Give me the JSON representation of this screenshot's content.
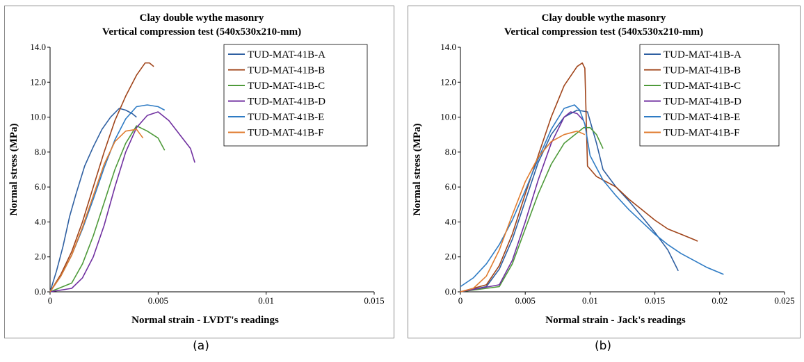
{
  "panels": [
    {
      "caption": "(a)"
    },
    {
      "caption": "(b)"
    }
  ],
  "chart_data": [
    {
      "type": "line",
      "title": "Clay double wythe masonry",
      "subtitle": "Vertical compression test (540x530x210-mm)",
      "xlabel": "Normal strain - LVDT's readings",
      "ylabel": "Normal stress (MPa)",
      "xlim": [
        0,
        0.015
      ],
      "ylim": [
        0,
        14
      ],
      "xticks": [
        0,
        0.005,
        0.01,
        0.015
      ],
      "xtick_labels": [
        "0",
        "0.005",
        "0.01",
        "0.015"
      ],
      "yticks": [
        0,
        2,
        4,
        6,
        8,
        10,
        12,
        14
      ],
      "ytick_labels": [
        "0.0",
        "2.0",
        "4.0",
        "6.0",
        "8.0",
        "10.0",
        "12.0",
        "14.0"
      ],
      "grid": false,
      "legend_position": "top-right",
      "series": [
        {
          "name": "TUD-MAT-41B-A",
          "color": "#2e5fa1",
          "x": [
            0,
            0.0003,
            0.0006,
            0.0009,
            0.0012,
            0.0016,
            0.002,
            0.0024,
            0.0028,
            0.0032,
            0.0035,
            0.0038,
            0.004
          ],
          "y": [
            0,
            1.2,
            2.6,
            4.3,
            5.6,
            7.2,
            8.3,
            9.3,
            10.0,
            10.5,
            10.4,
            10.2,
            10.0
          ]
        },
        {
          "name": "TUD-MAT-41B-B",
          "color": "#a0441a",
          "x": [
            0,
            0.0005,
            0.001,
            0.0015,
            0.002,
            0.0025,
            0.003,
            0.0035,
            0.004,
            0.0044,
            0.0046,
            0.0048
          ],
          "y": [
            0,
            1.0,
            2.3,
            4.0,
            6.0,
            8.0,
            9.8,
            11.2,
            12.4,
            13.1,
            13.1,
            12.9
          ]
        },
        {
          "name": "TUD-MAT-41B-C",
          "color": "#4e9a3a",
          "x": [
            0,
            0.001,
            0.0015,
            0.002,
            0.0025,
            0.003,
            0.0035,
            0.004,
            0.0045,
            0.005,
            0.0053
          ],
          "y": [
            0,
            0.5,
            1.6,
            3.2,
            5.1,
            7.0,
            8.5,
            9.5,
            9.2,
            8.8,
            8.1
          ]
        },
        {
          "name": "TUD-MAT-41B-D",
          "color": "#7030a0",
          "x": [
            0,
            0.001,
            0.0015,
            0.002,
            0.0025,
            0.003,
            0.0035,
            0.004,
            0.0045,
            0.005,
            0.0055,
            0.006,
            0.0065,
            0.0067
          ],
          "y": [
            0,
            0.2,
            0.8,
            2.0,
            3.8,
            6.0,
            8.0,
            9.4,
            10.1,
            10.3,
            9.8,
            9.0,
            8.2,
            7.4
          ]
        },
        {
          "name": "TUD-MAT-41B-E",
          "color": "#2e7bc4",
          "x": [
            0,
            0.0005,
            0.001,
            0.0015,
            0.002,
            0.0025,
            0.003,
            0.0035,
            0.004,
            0.0045,
            0.005,
            0.0053
          ],
          "y": [
            0,
            0.9,
            2.1,
            3.6,
            5.3,
            7.1,
            8.7,
            9.9,
            10.6,
            10.7,
            10.6,
            10.4
          ]
        },
        {
          "name": "TUD-MAT-41B-F",
          "color": "#e07b2e",
          "x": [
            0,
            0.0005,
            0.001,
            0.0015,
            0.002,
            0.0025,
            0.003,
            0.0035,
            0.004,
            0.0043
          ],
          "y": [
            0,
            0.9,
            2.1,
            3.7,
            5.5,
            7.3,
            8.6,
            9.2,
            9.3,
            8.8
          ]
        }
      ]
    },
    {
      "type": "line",
      "title": "Clay double wythe masonry",
      "subtitle": "Vertical compression test (540x530x210-mm)",
      "xlabel": "Normal strain - Jack's readings",
      "ylabel": "Normal stress (MPa)",
      "xlim": [
        0,
        0.025
      ],
      "ylim": [
        0,
        14
      ],
      "xticks": [
        0,
        0.005,
        0.01,
        0.015,
        0.02,
        0.025
      ],
      "xtick_labels": [
        "0",
        "0.005",
        "0.01",
        "0.015",
        "0.02",
        "0.025"
      ],
      "yticks": [
        0,
        2,
        4,
        6,
        8,
        10,
        12,
        14
      ],
      "ytick_labels": [
        "0.0",
        "2.0",
        "4.0",
        "6.0",
        "8.0",
        "10.0",
        "12.0",
        "14.0"
      ],
      "grid": false,
      "legend_position": "top-right",
      "series": [
        {
          "name": "TUD-MAT-41B-A",
          "color": "#2e5fa1",
          "x": [
            0,
            0.002,
            0.003,
            0.004,
            0.005,
            0.006,
            0.007,
            0.008,
            0.009,
            0.0098,
            0.0105,
            0.011,
            0.012,
            0.013,
            0.014,
            0.015,
            0.016,
            0.0168
          ],
          "y": [
            0,
            0.3,
            1.3,
            3.0,
            5.2,
            7.4,
            9.0,
            10.0,
            10.4,
            10.3,
            8.5,
            7.0,
            6.0,
            5.2,
            4.3,
            3.4,
            2.4,
            1.2
          ]
        },
        {
          "name": "TUD-MAT-41B-B",
          "color": "#a0441a",
          "x": [
            0,
            0.002,
            0.003,
            0.004,
            0.005,
            0.006,
            0.007,
            0.008,
            0.009,
            0.0094,
            0.0096,
            0.0098,
            0.0105,
            0.011,
            0.012,
            0.013,
            0.014,
            0.015,
            0.016,
            0.017,
            0.018,
            0.0183
          ],
          "y": [
            0,
            0.4,
            1.5,
            3.3,
            5.6,
            7.8,
            10.0,
            11.8,
            12.9,
            13.1,
            12.8,
            7.2,
            6.6,
            6.4,
            6.0,
            5.3,
            4.7,
            4.1,
            3.6,
            3.3,
            3.0,
            2.9
          ]
        },
        {
          "name": "TUD-MAT-41B-C",
          "color": "#4e9a3a",
          "x": [
            0,
            0.003,
            0.004,
            0.005,
            0.006,
            0.007,
            0.008,
            0.009,
            0.0095,
            0.01,
            0.0105,
            0.011
          ],
          "y": [
            0,
            0.3,
            1.6,
            3.6,
            5.6,
            7.3,
            8.5,
            9.1,
            9.4,
            9.4,
            9.0,
            8.2
          ]
        },
        {
          "name": "TUD-MAT-41B-D",
          "color": "#7030a0",
          "x": [
            0,
            0.003,
            0.004,
            0.005,
            0.006,
            0.007,
            0.008,
            0.0085,
            0.009,
            0.0095
          ],
          "y": [
            0,
            0.4,
            1.8,
            4.0,
            6.4,
            8.5,
            10.0,
            10.3,
            10.2,
            9.8
          ]
        },
        {
          "name": "TUD-MAT-41B-E",
          "color": "#2e7bc4",
          "x": [
            0,
            0.001,
            0.002,
            0.003,
            0.004,
            0.005,
            0.006,
            0.007,
            0.008,
            0.0088,
            0.0092,
            0.0096,
            0.01,
            0.011,
            0.012,
            0.013,
            0.014,
            0.015,
            0.016,
            0.017,
            0.018,
            0.019,
            0.0203
          ],
          "y": [
            0.3,
            0.8,
            1.6,
            2.7,
            4.1,
            5.8,
            7.6,
            9.3,
            10.5,
            10.7,
            10.4,
            9.6,
            7.8,
            6.4,
            5.5,
            4.7,
            4.0,
            3.3,
            2.7,
            2.2,
            1.8,
            1.4,
            1.0
          ]
        },
        {
          "name": "TUD-MAT-41B-F",
          "color": "#e07b2e",
          "x": [
            0,
            0.001,
            0.002,
            0.003,
            0.004,
            0.005,
            0.006,
            0.007,
            0.008,
            0.009,
            0.0096
          ],
          "y": [
            0,
            0.2,
            0.9,
            2.4,
            4.4,
            6.3,
            7.7,
            8.6,
            9.0,
            9.2,
            9.0
          ]
        }
      ]
    }
  ]
}
